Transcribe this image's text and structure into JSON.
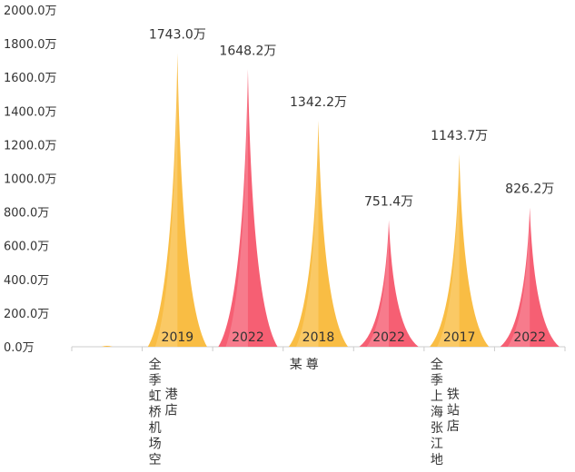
{
  "chart_data": {
    "type": "bar",
    "ylim": [
      0,
      2000
    ],
    "y_ticks": [
      0,
      200,
      400,
      600,
      800,
      1000,
      1200,
      1400,
      1600,
      1800,
      2000
    ],
    "y_tick_labels": [
      "0.0万",
      "200.0万",
      "400.0万",
      "600.0万",
      "800.0万",
      "1000.0万",
      "1200.0万",
      "1400.0万",
      "1600.0万",
      "1800.0万",
      "2000.0万"
    ],
    "categories": [
      "",
      "全季虹桥机场空港店",
      "",
      "某尊",
      "",
      "全季上海张江地铁站店",
      ""
    ],
    "category_display": [
      [],
      [
        "全季",
        "虹桥",
        "机场",
        "空",
        "港店"
      ],
      [],
      [
        "某",
        "尊"
      ],
      [],
      [
        "全季",
        "上海",
        "张江",
        "地",
        "铁站店"
      ],
      []
    ],
    "bars": [
      {
        "slot": 1,
        "year": "2019",
        "value": 1743.0,
        "label": "1743.0万",
        "color": "#f9b93a"
      },
      {
        "slot": 2,
        "year": "2022",
        "value": 1648.2,
        "label": "1648.2万",
        "color": "#f5566c"
      },
      {
        "slot": 3,
        "year": "2018",
        "value": 1342.2,
        "label": "1342.2万",
        "color": "#f9b93a"
      },
      {
        "slot": 4,
        "year": "2022",
        "value": 751.4,
        "label": "751.4万",
        "color": "#f5566c"
      },
      {
        "slot": 5,
        "year": "2017",
        "value": 1143.7,
        "label": "1143.7万",
        "color": "#f9b93a"
      },
      {
        "slot": 6,
        "year": "2022",
        "value": 826.2,
        "label": "826.2万",
        "color": "#f5566c"
      }
    ],
    "colors": {
      "yellow": "#f9b93a",
      "red": "#f5566c",
      "axis": "#cccccc",
      "text": "#333333"
    }
  }
}
